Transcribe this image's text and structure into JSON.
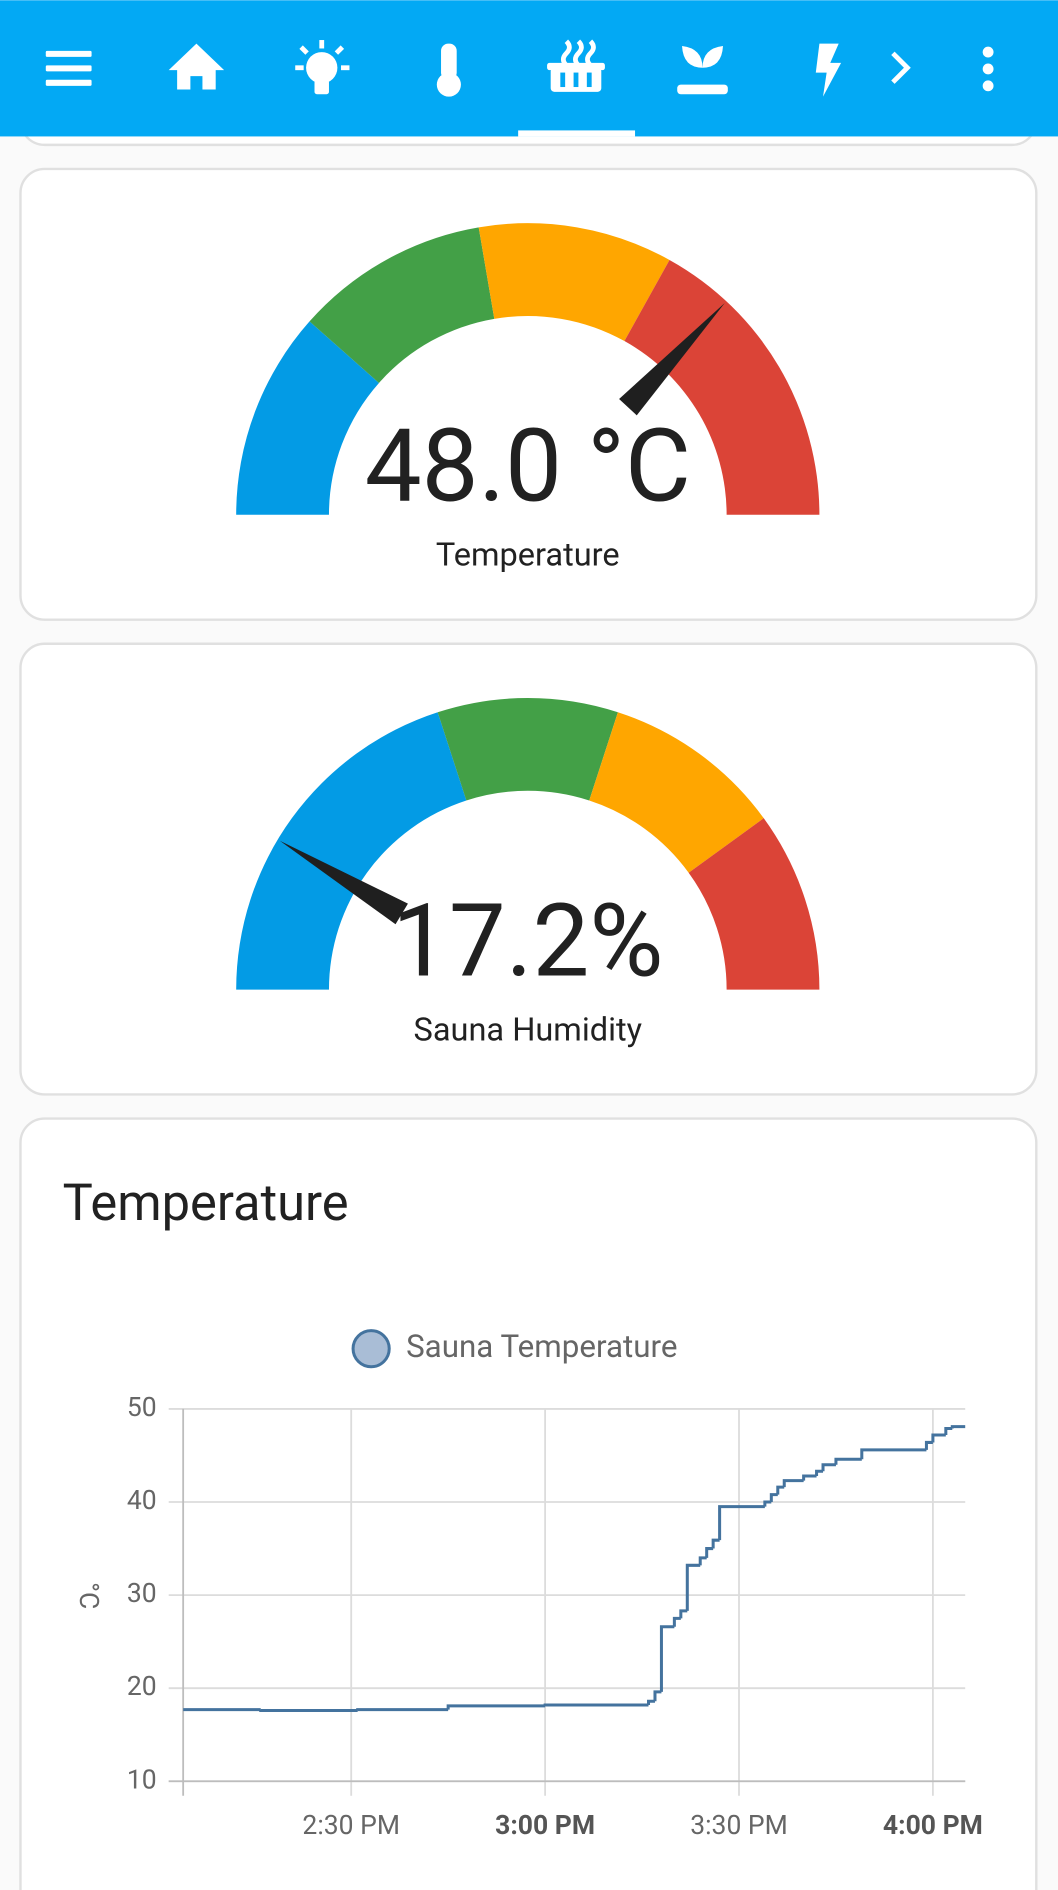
{
  "gauges": [
    {
      "name": "Temperature",
      "value": 48.0,
      "value_label": "48.0 °C",
      "min": 0,
      "max": 65,
      "segments": [
        {
          "from": 0,
          "color": "#039be5"
        },
        {
          "from": 15,
          "color": "#43a047"
        },
        {
          "from": 29,
          "color": "#ffa600"
        },
        {
          "from": 43,
          "color": "#db4437"
        }
      ]
    },
    {
      "name": "Sauna Humidity",
      "value": 17.2,
      "value_label": "17.2%",
      "min": 0,
      "max": 100,
      "segments": [
        {
          "from": 0,
          "color": "#039be5"
        },
        {
          "from": 40,
          "color": "#43a047"
        },
        {
          "from": 60,
          "color": "#ffa600"
        },
        {
          "from": 80,
          "color": "#db4437"
        }
      ]
    }
  ],
  "chart_data": {
    "type": "line",
    "step": true,
    "title": "Temperature",
    "y_label": "°C",
    "x": [
      "2:04 PM",
      "2:16 PM",
      "2:31 PM",
      "2:45 PM",
      "3:00 PM",
      "3:16 PM",
      "3:17 PM",
      "3:18 PM",
      "3:20 PM",
      "3:21 PM",
      "3:22 PM",
      "3:24 PM",
      "3:25 PM",
      "3:26 PM",
      "3:27 PM",
      "3:34 PM",
      "3:35 PM",
      "3:36 PM",
      "3:37 PM",
      "3:40 PM",
      "3:42 PM",
      "3:43 PM",
      "3:45 PM",
      "3:49 PM",
      "3:59 PM",
      "4:00 PM",
      "4:02 PM",
      "4:03 PM"
    ],
    "series": [
      {
        "name": "Sauna Temperature",
        "color": "#44739e",
        "values": [
          17.7,
          17.6,
          17.7,
          18.1,
          18.2,
          18.6,
          19.6,
          26.6,
          27.5,
          28.3,
          33.2,
          34.0,
          35.0,
          35.9,
          39.5,
          40.0,
          40.8,
          41.6,
          42.3,
          42.8,
          43.3,
          44.0,
          44.6,
          45.6,
          46.4,
          47.2,
          47.9,
          48.1
        ]
      }
    ],
    "xlim": [
      "2:04 PM",
      "4:05 PM"
    ],
    "xticks": [
      "2:30 PM",
      "3:00 PM",
      "3:30 PM",
      "4:00 PM"
    ],
    "xtick_bold": [
      false,
      true,
      false,
      true
    ],
    "ylim": [
      10,
      50
    ],
    "yticks": [
      10,
      20,
      30,
      40,
      50
    ],
    "grid": true
  }
}
